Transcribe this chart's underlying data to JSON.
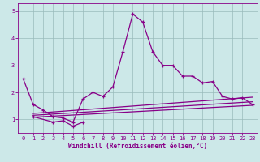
{
  "x": [
    0,
    1,
    2,
    3,
    4,
    5,
    6,
    7,
    8,
    9,
    10,
    11,
    12,
    13,
    14,
    15,
    16,
    17,
    18,
    19,
    20,
    21,
    22,
    23
  ],
  "line_main": [
    2.5,
    1.55,
    1.35,
    1.1,
    1.05,
    0.9,
    1.75,
    2.0,
    1.85,
    2.2,
    3.5,
    4.9,
    4.6,
    3.5,
    3.0,
    3.0,
    2.6,
    2.6,
    2.35,
    2.4,
    1.85,
    1.75,
    1.8,
    1.55
  ],
  "line_low": [
    null,
    1.1,
    null,
    0.9,
    0.95,
    0.75,
    0.9,
    null,
    null,
    null,
    null,
    null,
    null,
    null,
    null,
    null,
    null,
    null,
    null,
    null,
    null,
    null,
    null,
    null
  ],
  "line_diag1": [
    [
      1,
      1.08
    ],
    [
      23,
      1.52
    ]
  ],
  "line_diag2": [
    [
      1,
      1.15
    ],
    [
      23,
      1.65
    ]
  ],
  "line_diag3": [
    [
      1,
      1.22
    ],
    [
      23,
      1.82
    ]
  ],
  "line_color": "#880088",
  "bg_color": "#cce8e8",
  "grid_color": "#99bbbb",
  "xlabel": "Windchill (Refroidissement éolien,°C)",
  "ylim": [
    0.5,
    5.3
  ],
  "xlim": [
    -0.5,
    23.5
  ],
  "yticks": [
    1,
    2,
    3,
    4,
    5
  ],
  "xticks": [
    0,
    1,
    2,
    3,
    4,
    5,
    6,
    7,
    8,
    9,
    10,
    11,
    12,
    13,
    14,
    15,
    16,
    17,
    18,
    19,
    20,
    21,
    22,
    23
  ]
}
